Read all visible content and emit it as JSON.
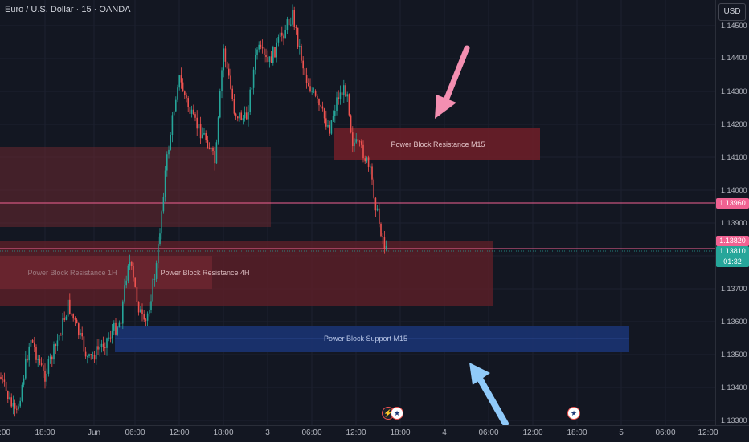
{
  "symbol": {
    "title": "Euro / U.S. Dollar · 15 · OANDA"
  },
  "currency": "USD",
  "price_axis": {
    "ticks": [
      "1.14500",
      "1.14400",
      "1.14300",
      "1.14200",
      "1.14100",
      "1.14000",
      "1.13900",
      "1.13700",
      "1.13600",
      "1.13500",
      "1.13400",
      "1.13300"
    ]
  },
  "price_tags": {
    "level_high": "1.13960",
    "level_low": "1.13820",
    "last_price": "1.13810",
    "countdown": "01:32"
  },
  "time_axis": {
    "ticks": [
      ":00",
      "18:00",
      "Jun",
      "06:00",
      "12:00",
      "18:00",
      "3",
      "06:00",
      "12:00",
      "18:00",
      "4",
      "06:00",
      "12:00",
      "18:00",
      "5",
      "06:00",
      "12:00"
    ]
  },
  "zones": {
    "resistance_1h": "Power Block Resistance  1H",
    "resistance_4h": "Power Block Resistance  4H",
    "resistance_m15": "Power Block Resistance  M15",
    "support_m15": "Power Block Support M15"
  },
  "events": [
    "flash-icon",
    "us-flag-icon",
    "us-flag-icon"
  ],
  "colors": {
    "background": "#131722",
    "bull": "#26a69a",
    "bear": "#ef5350",
    "resistance_zone": "#6b2830",
    "support_zone": "#1e3a78",
    "level_line": "#f06292",
    "pink_arrow": "#f48fb1",
    "blue_arrow": "#90caf9",
    "last_price_tag": "#26a69a"
  }
}
